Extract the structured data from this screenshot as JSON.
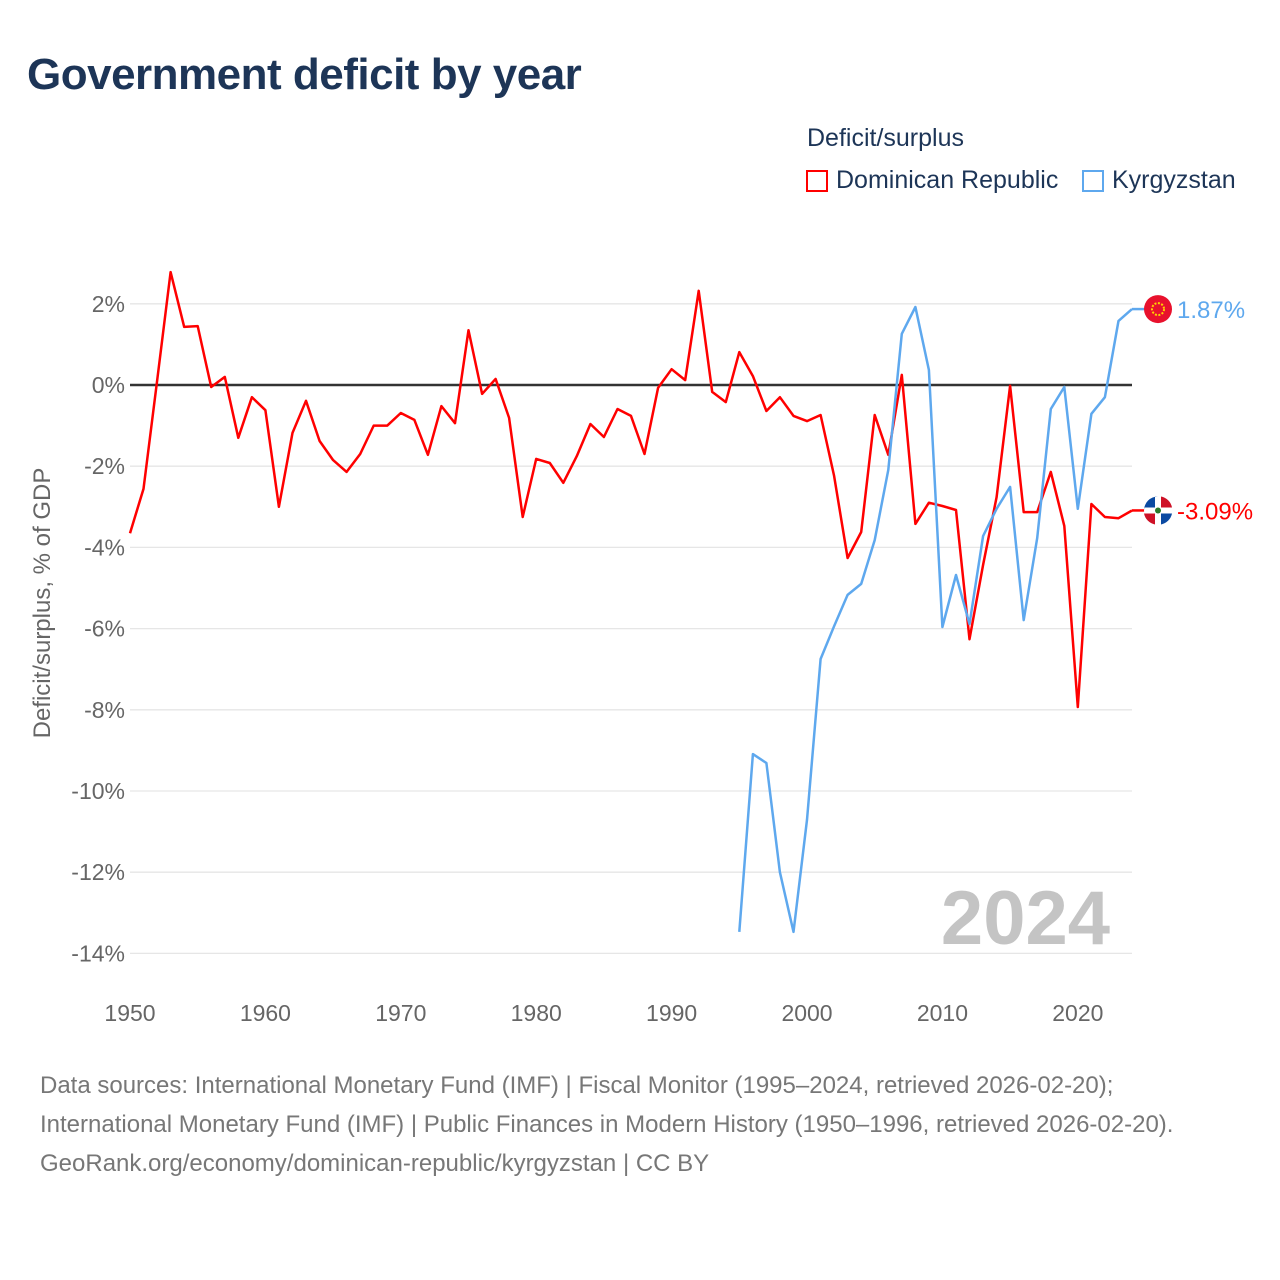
{
  "title": "Government deficit by year",
  "legend_title": "Deficit/surplus",
  "footer": {
    "sources": "Data sources: International Monetary Fund (IMF) | Fiscal Monitor (1995–2024, retrieved 2026-02-20); International Monetary Fund (IMF) | Public Finances in Modern History (1950–1996, retrieved 2026-02-20).",
    "credit": "GeoRank.org/economy/dominican-republic/kyrgyzstan | CC BY"
  },
  "chart_data": {
    "type": "line",
    "title": "Government deficit by year",
    "ylabel": "Deficit/surplus, % of GDP",
    "xlabel": "",
    "xlim": [
      1950,
      2024
    ],
    "ylim": [
      -14.5,
      3
    ],
    "xticks": [
      1950,
      1960,
      1970,
      1980,
      1990,
      2000,
      2010,
      2020
    ],
    "xtick_labels": [
      "1950",
      "1960",
      "1970",
      "1980",
      "1990",
      "2000",
      "2010",
      "2020"
    ],
    "yticks": [
      2,
      0,
      -2,
      -4,
      -6,
      -8,
      -10,
      -12,
      -14
    ],
    "ytick_labels": [
      "2%",
      "0%",
      "-2%",
      "-4%",
      "-6%",
      "-8%",
      "-10%",
      "-12%",
      "-14%"
    ],
    "year_watermark": "2024",
    "legend_placement": "top-right",
    "series": [
      {
        "name": "Dominican Republic",
        "color": "#ff0000",
        "end_label": "-3.09%",
        "start": 1950,
        "values": [
          -3.65,
          -2.56,
          0.1,
          2.78,
          1.43,
          1.45,
          -0.05,
          0.2,
          -1.3,
          -0.3,
          -0.62,
          -3.0,
          -1.18,
          -0.39,
          -1.38,
          -1.85,
          -2.14,
          -1.7,
          -1.0,
          -1.0,
          -0.69,
          -0.86,
          -1.72,
          -0.52,
          -0.94,
          1.35,
          -0.22,
          0.15,
          -0.81,
          -3.25,
          -1.82,
          -1.92,
          -2.41,
          -1.75,
          -0.96,
          -1.28,
          -0.59,
          -0.76,
          -1.7,
          -0.07,
          0.39,
          0.12,
          2.32,
          -0.17,
          -0.42,
          0.81,
          0.22,
          -0.64,
          -0.3,
          -0.76,
          -0.89,
          -0.74,
          -2.24,
          -4.26,
          -3.62,
          -0.74,
          -1.72,
          0.25,
          -3.42,
          -2.9,
          -2.98,
          -3.08,
          -6.26,
          -4.43,
          -2.76,
          -0.02,
          -3.13,
          -3.13,
          -2.14,
          -3.47,
          -7.93,
          -2.93,
          -3.25,
          -3.28,
          -3.09
        ]
      },
      {
        "name": "Kyrgyzstan",
        "color": "#5ea8ee",
        "end_label": "1.87%",
        "start": 1995,
        "values": [
          -13.47,
          -9.09,
          -9.31,
          -12.0,
          -13.47,
          -10.71,
          -6.75,
          -5.94,
          -5.17,
          -4.9,
          -3.82,
          -2.09,
          1.26,
          1.92,
          0.37,
          -5.96,
          -4.68,
          -5.89,
          -3.72,
          -3.05,
          -2.51,
          -5.79,
          -3.77,
          -0.59,
          -0.05,
          -3.05,
          -0.71,
          -0.3,
          1.58,
          1.87
        ]
      }
    ]
  }
}
